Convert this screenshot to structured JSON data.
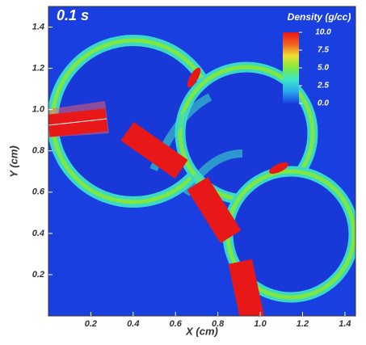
{
  "chart_data": {
    "type": "density-map",
    "title": "0.1 s",
    "colorbar_label": "Density (g/cc)",
    "xlabel": "X (cm)",
    "ylabel": "Y (cm)",
    "xlim": [
      0,
      1.45
    ],
    "ylim": [
      0,
      1.5
    ],
    "xticks": [
      0.2,
      0.4,
      0.6,
      0.8,
      {
        "value": 1,
        "label": "1.0"
      },
      1.2,
      1.4
    ],
    "yticks": [
      0.2,
      0.4,
      0.6,
      0.8,
      {
        "value": 1,
        "label": "1.0"
      },
      1.2,
      1.4
    ],
    "clim": [
      0,
      10
    ],
    "cticks": [
      {
        "value": 0,
        "label": "0.0"
      },
      2.5,
      {
        "value": 5,
        "label": "5.0"
      },
      7.5,
      {
        "value": 10,
        "label": "10.0"
      }
    ],
    "colormap": [
      "#1a3fe0",
      "#29a8f0",
      "#3be8c8",
      "#7fe840",
      "#f0e030",
      "#f06020",
      "#e81818"
    ]
  }
}
